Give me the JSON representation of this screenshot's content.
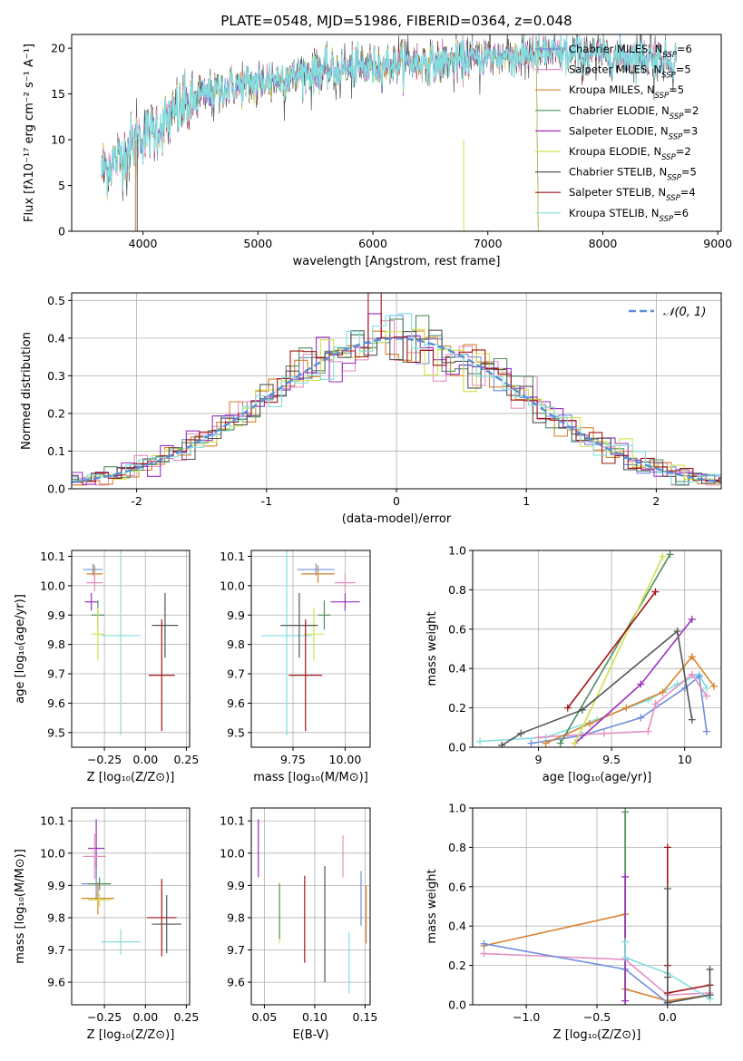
{
  "colors": {
    "chabrier_miles": "#6f8fdd",
    "salpeter_miles": "#e58fc4",
    "kroupa_miles": "#d9812d",
    "chabrier_elodie": "#4f8f5f",
    "salpeter_elodie": "#9b2fc0",
    "kroupa_elodie": "#cfe24d",
    "chabrier_stelib": "#555555",
    "salpeter_stelib": "#a31515",
    "kroupa_stelib": "#82dede",
    "normal": "#5b8fd6"
  },
  "legend": [
    {
      "key": "chabrier_miles",
      "text": "Chabrier MILES, N",
      "sub": "SSP",
      "val": "=6"
    },
    {
      "key": "salpeter_miles",
      "text": "Salpeter MILES, N",
      "sub": "SSP",
      "val": "=5"
    },
    {
      "key": "kroupa_miles",
      "text": "Kroupa MILES, N",
      "sub": "SSP",
      "val": "=5"
    },
    {
      "key": "chabrier_elodie",
      "text": "Chabrier ELODIE, N",
      "sub": "SSP",
      "val": "=2"
    },
    {
      "key": "salpeter_elodie",
      "text": "Salpeter ELODIE, N",
      "sub": "SSP",
      "val": "=3"
    },
    {
      "key": "kroupa_elodie",
      "text": "Kroupa ELODIE, N",
      "sub": "SSP",
      "val": "=2"
    },
    {
      "key": "chabrier_stelib",
      "text": "Chabrier STELIB, N",
      "sub": "SSP",
      "val": "=5"
    },
    {
      "key": "salpeter_stelib",
      "text": "Salpeter STELIB, N",
      "sub": "SSP",
      "val": "=4"
    },
    {
      "key": "kroupa_stelib",
      "text": "Kroupa STELIB, N",
      "sub": "SSP",
      "val": "=6"
    }
  ],
  "chart_data": [
    {
      "id": "spectrum",
      "type": "line",
      "title": "PLATE=0548, MJD=51986, FIBERID=0364, z=0.048",
      "xlabel": "wavelength [Angstrom, rest frame]",
      "ylabel": "Flux [fλ10⁻¹⁷ erg cm⁻² s⁻¹ A⁻¹]",
      "xlim": [
        3380,
        9030
      ],
      "ylim": [
        0,
        21.5
      ],
      "xticks": [
        4000,
        5000,
        6000,
        7000,
        8000,
        9000
      ],
      "yticks": [
        0,
        5,
        10,
        15,
        20
      ],
      "envelope": {
        "x": [
          3640,
          3700,
          3800,
          3900,
          4000,
          4100,
          4200,
          4300,
          4400,
          4500,
          4600,
          4700,
          4800,
          4900,
          5000,
          5200,
          5400,
          5600,
          5800,
          6000,
          6200,
          6400,
          6600,
          6800,
          7000,
          7200,
          7400,
          7600,
          7800,
          8000,
          8200,
          8400,
          8600,
          8640
        ],
        "y": [
          6.5,
          7.2,
          8.0,
          9.5,
          10.5,
          11.0,
          12.0,
          13.0,
          14.0,
          14.5,
          15.0,
          15.5,
          15.8,
          16.0,
          16.2,
          16.8,
          17.2,
          17.5,
          17.8,
          18.0,
          18.3,
          18.4,
          18.5,
          18.8,
          19.0,
          19.2,
          19.3,
          19.4,
          19.4,
          19.3,
          19.2,
          19.0,
          18.8,
          18.8
        ]
      },
      "legend_position": "upper-right"
    },
    {
      "id": "residuals",
      "type": "line",
      "xlabel": "(data-model)/error",
      "ylabel": "Normed distribution",
      "xlim": [
        -2.5,
        2.5
      ],
      "ylim": [
        0,
        0.52
      ],
      "xticks": [
        -2,
        -1,
        0,
        1,
        2
      ],
      "yticks": [
        0.0,
        0.1,
        0.2,
        0.3,
        0.4,
        0.5
      ],
      "grid": true,
      "legend_label": "𝒩(0, 1)",
      "legend_position": "upper-right"
    },
    {
      "id": "age-vs-Z",
      "type": "scatter",
      "xlabel": "Z [log₁₀(Z/Z⊙)]",
      "ylabel": "age  [log₁₀(age/yr)]",
      "xlim": [
        -0.45,
        0.27
      ],
      "ylim": [
        9.45,
        10.12
      ],
      "xticks": [
        -0.25,
        0.0,
        0.25
      ],
      "xtick_labels": [
        "−0.25",
        "0.00",
        "0.25"
      ],
      "yticks": [
        9.5,
        9.6,
        9.7,
        9.8,
        9.9,
        10.0,
        10.1
      ],
      "points": [
        {
          "key": "chabrier_miles",
          "x": -0.32,
          "xerr": 0.06,
          "y": 10.055,
          "yerr": 0.02
        },
        {
          "key": "kroupa_miles",
          "x": -0.31,
          "xerr": 0.05,
          "y": 10.04,
          "yerr": 0.03
        },
        {
          "key": "salpeter_miles",
          "x": -0.31,
          "xerr": 0.05,
          "y": 10.01,
          "yerr": 0.03
        },
        {
          "key": "salpeter_elodie",
          "x": -0.33,
          "xerr": 0.04,
          "y": 9.945,
          "yerr": 0.03
        },
        {
          "key": "chabrier_elodie",
          "x": -0.29,
          "xerr": 0.04,
          "y": 9.9,
          "yerr": 0.05
        },
        {
          "key": "kroupa_elodie",
          "x": -0.29,
          "xerr": 0.04,
          "y": 9.835,
          "yerr": 0.09
        },
        {
          "key": "kroupa_stelib",
          "x": -0.15,
          "xerr": 0.12,
          "y": 9.83,
          "yerr": 0.34
        },
        {
          "key": "chabrier_stelib",
          "x": 0.12,
          "xerr": 0.08,
          "y": 9.865,
          "yerr": 0.11
        },
        {
          "key": "salpeter_stelib",
          "x": 0.1,
          "xerr": 0.08,
          "y": 9.695,
          "yerr": 0.19
        }
      ]
    },
    {
      "id": "age-vs-mass",
      "type": "scatter",
      "xlabel": "mass [log₁₀(M/M⊙)]",
      "ylabel": "",
      "xlim": [
        9.55,
        10.12
      ],
      "ylim": [
        9.45,
        10.12
      ],
      "xticks": [
        9.75,
        10.0
      ],
      "xtick_labels": [
        "9.75",
        "10.00"
      ],
      "yticks": [
        9.5,
        9.6,
        9.7,
        9.8,
        9.9,
        10.0,
        10.1
      ],
      "points": [
        {
          "key": "chabrier_miles",
          "x": 9.86,
          "xerr": 0.09,
          "y": 10.055,
          "yerr": 0.02
        },
        {
          "key": "kroupa_miles",
          "x": 9.87,
          "xerr": 0.08,
          "y": 10.04,
          "yerr": 0.03
        },
        {
          "key": "salpeter_miles",
          "x": 10.0,
          "xerr": 0.05,
          "y": 10.01,
          "yerr": 0.03
        },
        {
          "key": "salpeter_elodie",
          "x": 10.0,
          "xerr": 0.07,
          "y": 9.945,
          "yerr": 0.03
        },
        {
          "key": "chabrier_elodie",
          "x": 9.9,
          "xerr": 0.03,
          "y": 9.9,
          "yerr": 0.05
        },
        {
          "key": "kroupa_elodie",
          "x": 9.85,
          "xerr": 0.05,
          "y": 9.835,
          "yerr": 0.09
        },
        {
          "key": "kroupa_stelib",
          "x": 9.72,
          "xerr": 0.12,
          "y": 9.83,
          "yerr": 0.34
        },
        {
          "key": "chabrier_stelib",
          "x": 9.78,
          "xerr": 0.09,
          "y": 9.865,
          "yerr": 0.11
        },
        {
          "key": "salpeter_stelib",
          "x": 9.81,
          "xerr": 0.08,
          "y": 9.695,
          "yerr": 0.19
        }
      ]
    },
    {
      "id": "massweight-vs-age",
      "type": "line",
      "xlabel": "age  [log₁₀(age/yr)]",
      "ylabel": "mass weight",
      "xlim": [
        8.55,
        10.25
      ],
      "ylim": [
        0,
        1.0
      ],
      "xticks": [
        9.0,
        9.5,
        10.0
      ],
      "yticks": [
        0.0,
        0.2,
        0.4,
        0.6,
        0.8,
        1.0
      ],
      "series": [
        {
          "key": "kroupa_stelib",
          "x": [
            8.6,
            9.05,
            9.4,
            9.75,
            9.95,
            10.1,
            10.15
          ],
          "y": [
            0.03,
            0.05,
            0.14,
            0.24,
            0.32,
            0.37,
            0.3
          ]
        },
        {
          "key": "chabrier_miles",
          "x": [
            8.95,
            9.3,
            9.7,
            10.0,
            10.1,
            10.15
          ],
          "y": [
            0.02,
            0.06,
            0.15,
            0.3,
            0.36,
            0.08
          ]
        },
        {
          "key": "salpeter_miles",
          "x": [
            9.0,
            9.2,
            9.45,
            9.75,
            9.8,
            10.05,
            10.15
          ],
          "y": [
            0.05,
            0.06,
            0.07,
            0.08,
            0.22,
            0.37,
            0.26
          ]
        },
        {
          "key": "kroupa_miles",
          "x": [
            9.05,
            9.35,
            9.6,
            9.85,
            10.05,
            10.2
          ],
          "y": [
            0.02,
            0.12,
            0.2,
            0.28,
            0.46,
            0.31
          ]
        },
        {
          "key": "salpeter_elodie",
          "x": [
            9.25,
            9.7,
            10.05
          ],
          "y": [
            0.02,
            0.32,
            0.65
          ]
        },
        {
          "key": "chabrier_elodie",
          "x": [
            9.15,
            9.9
          ],
          "y": [
            0.02,
            0.98
          ]
        },
        {
          "key": "kroupa_elodie",
          "x": [
            9.25,
            9.85
          ],
          "y": [
            0.02,
            0.97
          ]
        },
        {
          "key": "salpeter_stelib",
          "x": [
            9.2,
            9.8
          ],
          "y": [
            0.2,
            0.79
          ]
        },
        {
          "key": "chabrier_stelib",
          "x": [
            8.75,
            8.88,
            9.3,
            9.95,
            10.05
          ],
          "y": [
            0.01,
            0.07,
            0.19,
            0.59,
            0.14
          ]
        }
      ]
    },
    {
      "id": "mass-vs-Z",
      "type": "scatter",
      "xlabel": "Z [log₁₀(Z/Z⊙)]",
      "ylabel": "mass [log₁₀(M/M⊙)]",
      "xlim": [
        -0.45,
        0.27
      ],
      "ylim": [
        9.53,
        10.14
      ],
      "xticks": [
        -0.25,
        0.0,
        0.25
      ],
      "xtick_labels": [
        "−0.25",
        "0.00",
        "0.25"
      ],
      "yticks": [
        9.6,
        9.7,
        9.8,
        9.9,
        10.0,
        10.1
      ],
      "points": [
        {
          "key": "salpeter_elodie",
          "x": -0.3,
          "xerr": 0.05,
          "y": 10.015,
          "yerr": 0.09
        },
        {
          "key": "salpeter_miles",
          "x": -0.31,
          "xerr": 0.07,
          "y": 9.99,
          "yerr": 0.07
        },
        {
          "key": "chabrier_miles",
          "x": -0.3,
          "xerr": 0.09,
          "y": 9.905,
          "yerr": 0.05
        },
        {
          "key": "chabrier_elodie",
          "x": -0.28,
          "xerr": 0.07,
          "y": 9.905,
          "yerr": 0.02
        },
        {
          "key": "kroupa_miles",
          "x": -0.29,
          "xerr": 0.1,
          "y": 9.86,
          "yerr": 0.05
        },
        {
          "key": "kroupa_elodie",
          "x": -0.28,
          "xerr": 0.07,
          "y": 9.855,
          "yerr": 0.02
        },
        {
          "key": "kroupa_stelib",
          "x": -0.15,
          "xerr": 0.12,
          "y": 9.725,
          "yerr": 0.04
        },
        {
          "key": "salpeter_stelib",
          "x": 0.1,
          "xerr": 0.09,
          "y": 9.8,
          "yerr": 0.12
        },
        {
          "key": "chabrier_stelib",
          "x": 0.13,
          "xerr": 0.09,
          "y": 9.78,
          "yerr": 0.09
        }
      ]
    },
    {
      "id": "mass-vs-ebv",
      "type": "scatter",
      "xlabel": "E(B-V)",
      "ylabel": "",
      "xlim": [
        0.037,
        0.155
      ],
      "ylim": [
        9.53,
        10.14
      ],
      "xticks": [
        0.05,
        0.1,
        0.15
      ],
      "xtick_labels": [
        "0.05",
        "0.10",
        "0.15"
      ],
      "yticks": [
        9.6,
        9.7,
        9.8,
        9.9,
        10.0,
        10.1
      ],
      "points": [
        {
          "key": "salpeter_elodie",
          "x": 0.044,
          "y": 10.015,
          "yerr": 0.09
        },
        {
          "key": "kroupa_elodie",
          "x": 0.065,
          "y": 9.815,
          "yerr": 0.095
        },
        {
          "key": "chabrier_elodie",
          "x": 0.065,
          "y": 9.82,
          "yerr": 0.085
        },
        {
          "key": "salpeter_stelib",
          "x": 0.09,
          "y": 9.795,
          "yerr": 0.135
        },
        {
          "key": "chabrier_stelib",
          "x": 0.11,
          "y": 9.78,
          "yerr": 0.18
        },
        {
          "key": "salpeter_miles",
          "x": 0.128,
          "y": 9.99,
          "yerr": 0.065
        },
        {
          "key": "kroupa_stelib",
          "x": 0.134,
          "y": 9.66,
          "yerr": 0.095
        },
        {
          "key": "chabrier_miles",
          "x": 0.146,
          "y": 9.86,
          "yerr": 0.085
        },
        {
          "key": "kroupa_miles",
          "x": 0.151,
          "y": 9.81,
          "yerr": 0.09
        }
      ]
    },
    {
      "id": "massweight-vs-Z",
      "type": "line",
      "xlabel": "Z [log₁₀(Z/Z⊙)]",
      "ylabel": "mass weight",
      "xlim": [
        -1.38,
        0.38
      ],
      "ylim": [
        0,
        1.0
      ],
      "xticks": [
        -1.0,
        -0.5,
        0.0
      ],
      "xtick_labels": [
        "−1.0",
        "−0.5",
        "0.0"
      ],
      "yticks": [
        0.0,
        0.2,
        0.4,
        0.6,
        0.8,
        1.0
      ],
      "series": [
        {
          "key": "kroupa_miles",
          "x": [
            -1.3,
            -0.3,
            -0.3,
            0.0,
            0.3
          ],
          "y": [
            0.3,
            0.46,
            0.08,
            0.02,
            0.05
          ]
        },
        {
          "key": "salpeter_miles",
          "x": [
            -1.3,
            -0.3,
            0.0,
            0.3
          ],
          "y": [
            0.26,
            0.23,
            0.05,
            0.06
          ]
        },
        {
          "key": "chabrier_miles",
          "x": [
            -1.3,
            -0.3,
            0.0,
            0.3
          ],
          "y": [
            0.31,
            0.18,
            0.01,
            0.05
          ]
        },
        {
          "key": "kroupa_elodie",
          "x": [
            -0.3,
            -0.3
          ],
          "y": [
            0.98,
            0.02
          ]
        },
        {
          "key": "chabrier_elodie",
          "x": [
            -0.3,
            -0.3
          ],
          "y": [
            0.98,
            0.0
          ]
        },
        {
          "key": "salpeter_elodie",
          "x": [
            -0.3,
            -0.3
          ],
          "y": [
            0.65,
            0.02
          ]
        },
        {
          "key": "kroupa_stelib",
          "x": [
            -0.3,
            -0.3,
            0.0,
            0.3
          ],
          "y": [
            0.32,
            0.24,
            0.16,
            0.03
          ]
        },
        {
          "key": "salpeter_stelib",
          "x": [
            0.0,
            0.0,
            0.0,
            0.3
          ],
          "y": [
            0.8,
            0.2,
            0.06,
            0.1
          ]
        },
        {
          "key": "chabrier_stelib",
          "x": [
            0.0,
            0.0,
            0.0,
            0.3,
            0.3
          ],
          "y": [
            0.59,
            0.14,
            0.01,
            0.05,
            0.18
          ]
        }
      ]
    }
  ]
}
